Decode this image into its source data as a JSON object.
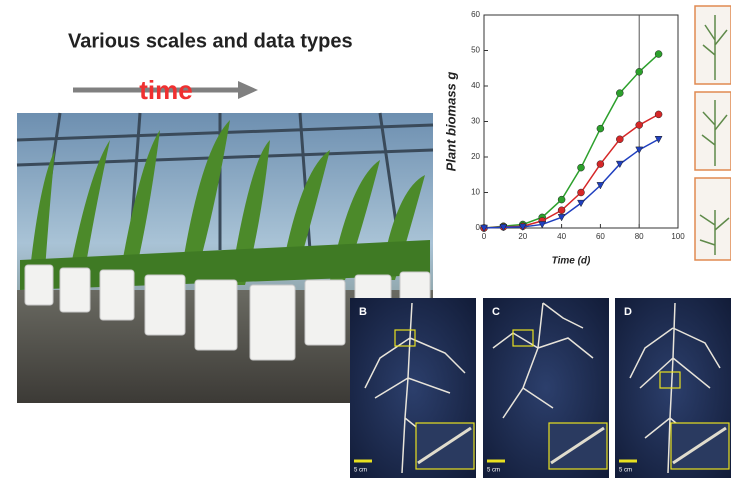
{
  "title": "Various scales and data types",
  "arrow_label": "time",
  "chart_data": {
    "type": "line",
    "xlabel": "Time (d)",
    "ylabel": "Plant biomass g",
    "xlim": [
      0,
      100
    ],
    "ylim": [
      0,
      60
    ],
    "xticks": [
      0,
      20,
      40,
      60,
      80,
      100
    ],
    "yticks": [
      0,
      10,
      20,
      30,
      40,
      50,
      60
    ],
    "x": [
      0,
      10,
      20,
      30,
      40,
      50,
      60,
      70,
      80,
      90
    ],
    "series": [
      {
        "color": "#2ca02c",
        "marker": "circle",
        "values": [
          0,
          0.5,
          1,
          3,
          8,
          17,
          28,
          38,
          44,
          49
        ]
      },
      {
        "color": "#d62728",
        "marker": "circle",
        "values": [
          0,
          0.3,
          0.5,
          2,
          5,
          10,
          18,
          25,
          29,
          32
        ]
      },
      {
        "color": "#1f3fbf",
        "marker": "triangle",
        "values": [
          0,
          0.2,
          0.3,
          1,
          3,
          7,
          12,
          18,
          22,
          25
        ]
      }
    ]
  },
  "panels": [
    {
      "label": "B",
      "scale": "5 cm"
    },
    {
      "label": "C",
      "scale": "5 cm"
    },
    {
      "label": "D",
      "scale": "5 cm"
    }
  ]
}
